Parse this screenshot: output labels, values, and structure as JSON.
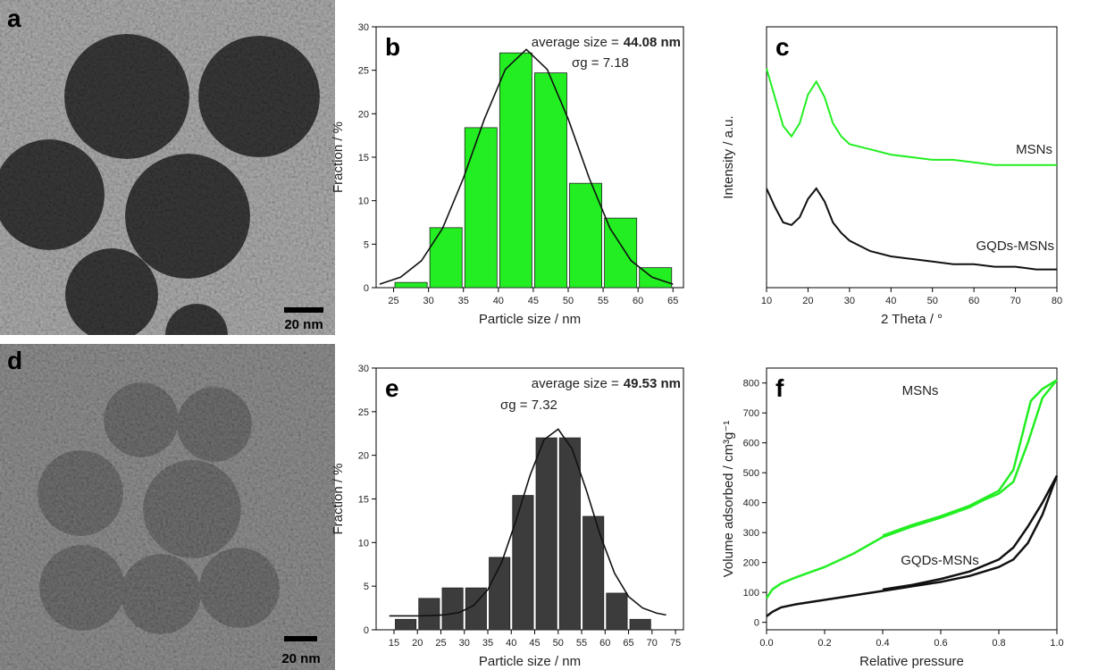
{
  "images": [
    {
      "panel_label": "a",
      "scale_bar": "20 nm"
    },
    {
      "panel_label": "d",
      "scale_bar": "20 nm"
    }
  ],
  "chart_data": [
    {
      "type": "histogram",
      "panel_label": "b",
      "annotation": "average size =",
      "annotation_value": "44.08 nm",
      "sigma": "σg = 7.18",
      "xlabel": "Particle size / nm",
      "ylabel": "Fraction / %",
      "bins": [
        25,
        30,
        35,
        40,
        45,
        50,
        55,
        60,
        65
      ],
      "values": [
        0.6,
        6.9,
        18.4,
        27,
        24.7,
        12,
        8,
        2.3
      ],
      "color": "#22ee22",
      "fit": {
        "x": [
          23,
          26,
          29,
          32,
          35,
          38,
          41,
          44,
          47,
          50,
          53,
          56,
          59,
          62,
          65
        ],
        "values": [
          0.4,
          1.2,
          3.1,
          6.8,
          12.6,
          19.4,
          25.1,
          27.4,
          25.1,
          19.4,
          12.6,
          6.8,
          3.1,
          1.2,
          0.4
        ],
        "color": "#111111"
      },
      "xlim": [
        22.5,
        66.5
      ],
      "xticks": [
        25,
        30,
        35,
        40,
        45,
        50,
        55,
        60,
        65
      ],
      "ylim": [
        0,
        30
      ],
      "yticks": [
        0,
        5,
        10,
        15,
        20,
        25,
        30
      ]
    },
    {
      "type": "line",
      "panel_label": "c",
      "xlabel": "2 Theta / °",
      "ylabel": "Intensity / a.u.",
      "x": [
        10,
        12,
        14,
        16,
        18,
        20,
        22,
        24,
        26,
        28,
        30,
        35,
        40,
        45,
        50,
        55,
        60,
        65,
        70,
        75,
        80
      ],
      "series": [
        {
          "name": "MSNs",
          "color": "#22ee22",
          "values": [
            0.84,
            0.73,
            0.62,
            0.58,
            0.63,
            0.74,
            0.79,
            0.73,
            0.63,
            0.58,
            0.55,
            0.53,
            0.51,
            0.5,
            0.49,
            0.49,
            0.48,
            0.47,
            0.47,
            0.47,
            0.47
          ]
        },
        {
          "name": "GQDs-MSNs",
          "color": "#111111",
          "values": [
            0.38,
            0.31,
            0.25,
            0.24,
            0.27,
            0.34,
            0.38,
            0.33,
            0.25,
            0.21,
            0.18,
            0.14,
            0.12,
            0.11,
            0.1,
            0.09,
            0.09,
            0.08,
            0.08,
            0.07,
            0.07
          ]
        }
      ],
      "xlim": [
        10,
        80
      ],
      "xticks": [
        10,
        20,
        30,
        40,
        50,
        60,
        70,
        80
      ],
      "ylim": [
        0,
        1
      ]
    },
    {
      "type": "histogram",
      "panel_label": "e",
      "annotation": "average size =",
      "annotation_value": "49.53 nm",
      "sigma": "σg = 7.32",
      "xlabel": "Particle size / nm",
      "ylabel": "Fraction / %",
      "bins": [
        15,
        20,
        25,
        30,
        35,
        40,
        45,
        50,
        55,
        60,
        65,
        70
      ],
      "values": [
        1.2,
        3.6,
        4.8,
        4.8,
        8.3,
        15.4,
        22,
        22,
        13,
        4.2,
        1.2
      ],
      "color": "#3c3c3c",
      "fit": {
        "x": [
          14,
          17,
          20,
          23,
          26,
          29,
          32,
          35,
          38,
          41,
          44,
          47,
          50,
          53,
          56,
          59,
          62,
          65,
          68,
          71,
          73
        ],
        "values": [
          1.6,
          1.6,
          1.6,
          1.63,
          1.72,
          2.0,
          2.8,
          4.6,
          7.8,
          12.5,
          17.7,
          21.8,
          23.0,
          20.7,
          16.0,
          10.8,
          6.5,
          3.8,
          2.5,
          1.9,
          1.7
        ],
        "color": "#111111"
      },
      "xlim": [
        11.2,
        76.7
      ],
      "xticks": [
        15,
        20,
        25,
        30,
        35,
        40,
        45,
        50,
        55,
        60,
        65,
        70,
        75
      ],
      "ylim": [
        0,
        30
      ],
      "yticks": [
        0,
        5,
        10,
        15,
        20,
        25,
        30
      ]
    },
    {
      "type": "isotherm",
      "panel_label": "f",
      "xlabel": "Relative pressure",
      "ylabel": "Volume adsorbed / cm³g⁻¹",
      "series": [
        {
          "name": "MSNs",
          "color": "#22ee22",
          "x": [
            0,
            0.02,
            0.05,
            0.1,
            0.2,
            0.3,
            0.4,
            0.5,
            0.6,
            0.7,
            0.75,
            0.8,
            0.85,
            0.9,
            0.95,
            1.0
          ],
          "values": [
            80,
            110,
            130,
            150,
            185,
            230,
            285,
            320,
            350,
            385,
            410,
            430,
            470,
            600,
            750,
            810
          ],
          "desorption_x": [
            1.0,
            0.95,
            0.91,
            0.85,
            0.8,
            0.7,
            0.6,
            0.5,
            0.4
          ],
          "desorption_values": [
            810,
            780,
            740,
            510,
            440,
            390,
            355,
            325,
            290
          ]
        },
        {
          "name": "GQDs-MSNs",
          "color": "#111111",
          "x": [
            0,
            0.02,
            0.05,
            0.1,
            0.2,
            0.3,
            0.4,
            0.5,
            0.6,
            0.7,
            0.8,
            0.85,
            0.9,
            0.95,
            1.0
          ],
          "values": [
            20,
            35,
            50,
            60,
            75,
            90,
            105,
            120,
            135,
            155,
            185,
            210,
            265,
            360,
            490
          ],
          "desorption_x": [
            1.0,
            0.95,
            0.9,
            0.85,
            0.8,
            0.7,
            0.6,
            0.5,
            0.4
          ],
          "desorption_values": [
            490,
            400,
            320,
            250,
            210,
            170,
            145,
            125,
            110
          ]
        }
      ],
      "xlim": [
        0,
        1
      ],
      "xticks": [
        {
          "value": 0,
          "label": "0.0"
        },
        0.2,
        0.4,
        0.6,
        0.8,
        {
          "value": 1,
          "label": "1.0"
        }
      ],
      "ylim": [
        -25,
        850
      ],
      "yticks": [
        0,
        100,
        200,
        300,
        400,
        500,
        600,
        700,
        800
      ]
    }
  ]
}
